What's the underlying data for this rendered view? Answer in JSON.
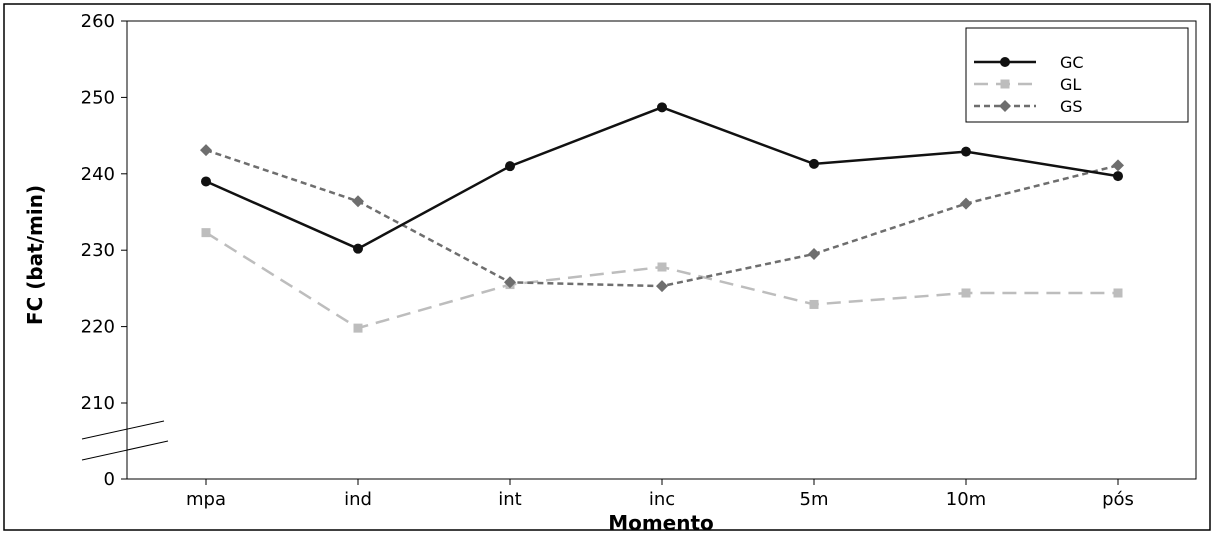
{
  "chart_data": {
    "type": "line",
    "title": "",
    "xlabel": "Momento",
    "ylabel": "FC (bat/min)",
    "categories": [
      "mpa",
      "ind",
      "int",
      "inc",
      "5m",
      "10m",
      "pós"
    ],
    "y_ticks": [
      "0",
      "210",
      "220",
      "230",
      "240",
      "250",
      "260"
    ],
    "ylim": [
      205,
      260
    ],
    "y_axis_break": true,
    "grid": false,
    "legend_position": "top-right",
    "series": [
      {
        "name": "GC",
        "values": [
          239.0,
          230.2,
          241.0,
          248.7,
          241.3,
          242.9,
          239.7
        ],
        "color": "#111111",
        "dash": "solid",
        "marker": "circle"
      },
      {
        "name": "GL",
        "values": [
          232.3,
          219.8,
          225.5,
          227.8,
          222.9,
          224.4,
          224.4
        ],
        "color": "#bdbdbd",
        "dash": "long-dash",
        "marker": "square"
      },
      {
        "name": "GS",
        "values": [
          243.1,
          236.4,
          225.8,
          225.3,
          229.5,
          236.1,
          241.1
        ],
        "color": "#6e6e6e",
        "dash": "short-dash",
        "marker": "diamond"
      }
    ]
  }
}
